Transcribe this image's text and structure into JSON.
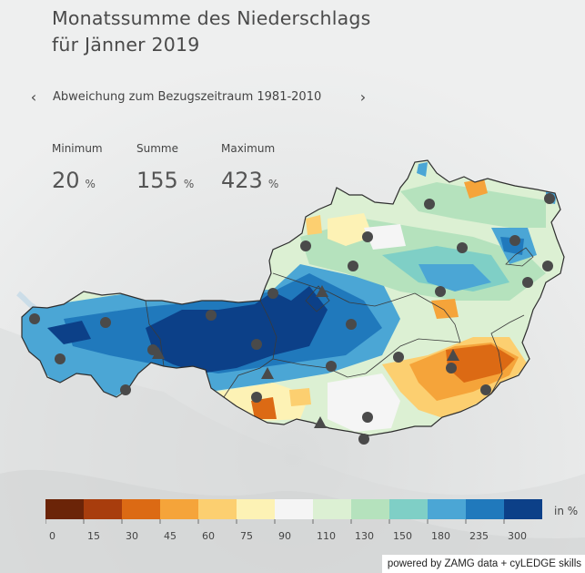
{
  "title": {
    "line1": "Monatssumme des Niederschlags",
    "line2": "für Jänner 2019"
  },
  "nav": {
    "prev_icon": "chevron-left-icon",
    "label": "Abweichung zum Bezugszeitraum 1981-2010",
    "next_icon": "chevron-right-icon"
  },
  "stats": [
    {
      "label": "Minimum",
      "value": "20",
      "unit": "%"
    },
    {
      "label": "Summe",
      "value": "155",
      "unit": "%"
    },
    {
      "label": "Maximum",
      "value": "423",
      "unit": "%"
    }
  ],
  "legend": {
    "unit": "in %",
    "bins": [
      {
        "color": "#6b2408"
      },
      {
        "color": "#a83d0d"
      },
      {
        "color": "#dc6a14"
      },
      {
        "color": "#f5a43a"
      },
      {
        "color": "#fccf70"
      },
      {
        "color": "#fdf2b5"
      },
      {
        "color": "#f5f5f5"
      },
      {
        "color": "#dcf0d3"
      },
      {
        "color": "#b5e2bd"
      },
      {
        "color": "#7fcfc6"
      },
      {
        "color": "#4ba6d5"
      },
      {
        "color": "#2079bc"
      },
      {
        "color": "#0c4088"
      }
    ],
    "ticks": [
      "0",
      "15",
      "30",
      "45",
      "60",
      "75",
      "90",
      "110",
      "130",
      "150",
      "180",
      "235",
      "300"
    ]
  },
  "markers": {
    "station_icon": "station-circle-icon",
    "mountain_station_icon": "mountain-triangle-icon"
  },
  "credit": "powered by ZAMG data + cyLEDGE skills"
}
